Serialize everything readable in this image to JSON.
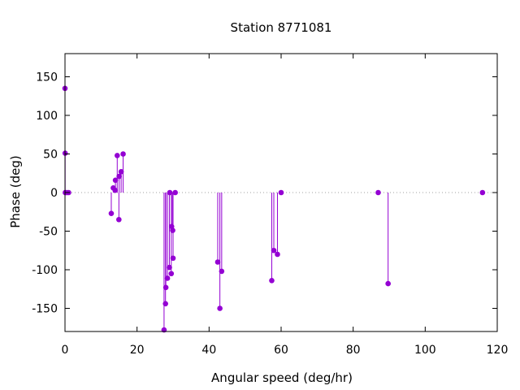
{
  "chart_data": {
    "type": "stem",
    "title": "Station 8771081",
    "xlabel": "Angular speed (deg/hr)",
    "ylabel": "Phase (deg)",
    "xlim": [
      0,
      120
    ],
    "ylim": [
      -180,
      180
    ],
    "xticks": [
      0,
      20,
      40,
      60,
      80,
      100,
      120
    ],
    "yticks": [
      -150,
      -100,
      -50,
      0,
      50,
      100,
      150
    ],
    "grid": false,
    "zero_line": "dotted",
    "color": "#9400d3",
    "points": [
      {
        "x": 0.0,
        "y": 135
      },
      {
        "x": 0.04,
        "y": 51
      },
      {
        "x": 0.08,
        "y": 0
      },
      {
        "x": 0.5,
        "y": 0
      },
      {
        "x": 1.0,
        "y": 0
      },
      {
        "x": 12.85,
        "y": -27
      },
      {
        "x": 13.4,
        "y": 6
      },
      {
        "x": 13.94,
        "y": 3
      },
      {
        "x": 14.0,
        "y": 16
      },
      {
        "x": 14.5,
        "y": 48
      },
      {
        "x": 14.96,
        "y": -35
      },
      {
        "x": 15.04,
        "y": 21
      },
      {
        "x": 15.59,
        "y": 27
      },
      {
        "x": 16.14,
        "y": 50
      },
      {
        "x": 27.5,
        "y": -178
      },
      {
        "x": 27.9,
        "y": -144
      },
      {
        "x": 28.0,
        "y": -123
      },
      {
        "x": 28.44,
        "y": -111
      },
      {
        "x": 28.98,
        "y": -97
      },
      {
        "x": 29.1,
        "y": 0
      },
      {
        "x": 29.5,
        "y": -105
      },
      {
        "x": 29.6,
        "y": -44
      },
      {
        "x": 29.9,
        "y": -49
      },
      {
        "x": 30.0,
        "y": -85
      },
      {
        "x": 30.6,
        "y": 0
      },
      {
        "x": 42.4,
        "y": -90
      },
      {
        "x": 43.0,
        "y": -150
      },
      {
        "x": 43.5,
        "y": -102
      },
      {
        "x": 57.4,
        "y": -114
      },
      {
        "x": 57.97,
        "y": -75
      },
      {
        "x": 58.98,
        "y": -80
      },
      {
        "x": 60.0,
        "y": 0
      },
      {
        "x": 86.95,
        "y": 0
      },
      {
        "x": 89.7,
        "y": -118
      },
      {
        "x": 115.9,
        "y": 0
      }
    ]
  }
}
